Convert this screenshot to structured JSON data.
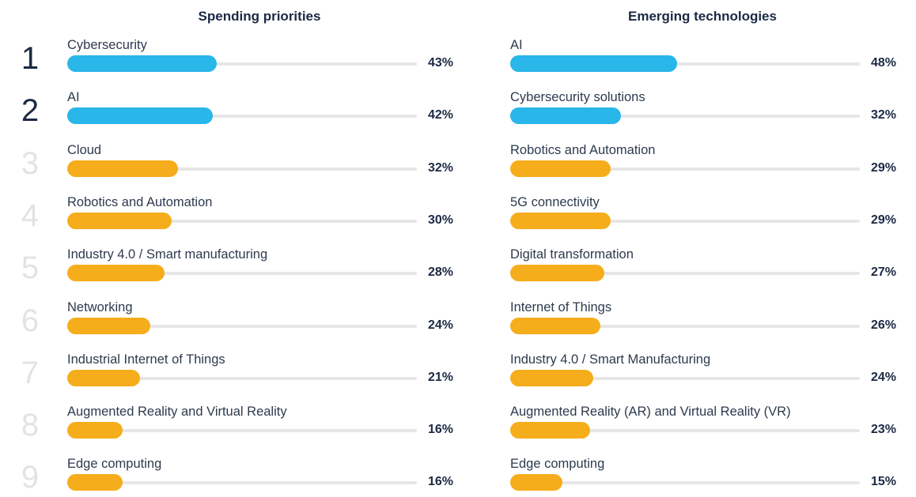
{
  "colors": {
    "top": "#29b6e8",
    "rest": "#f6ad1b",
    "rank_top": "#1b2a44",
    "rank_rest": "#e3e3e3"
  },
  "chart_data": [
    {
      "type": "bar",
      "orientation": "horizontal",
      "title": "Spending priorities",
      "ranks": [
        "1",
        "2",
        "3",
        "4",
        "5",
        "6",
        "7",
        "8",
        "9"
      ],
      "categories": [
        "Cybersecurity",
        "AI",
        "Cloud",
        "Robotics and Automation",
        "Industry 4.0 / Smart manufacturing",
        "Networking",
        "Industrial Internet of Things",
        "Augmented Reality and Virtual Reality",
        "Edge computing"
      ],
      "values": [
        43,
        42,
        32,
        30,
        28,
        24,
        21,
        16,
        16
      ],
      "labels": [
        "43%",
        "42%",
        "32%",
        "30%",
        "28%",
        "24%",
        "21%",
        "16%",
        "16%"
      ],
      "highlight_top": 2,
      "xlim": [
        0,
        100
      ]
    },
    {
      "type": "bar",
      "orientation": "horizontal",
      "title": "Emerging technologies",
      "categories": [
        "AI",
        "Cybersecurity solutions",
        "Robotics and Automation",
        "5G connectivity",
        "Digital transformation",
        "Internet of Things",
        "Industry 4.0 / Smart Manufacturing",
        "Augmented Reality (AR) and Virtual Reality (VR)",
        "Edge computing"
      ],
      "values": [
        48,
        32,
        29,
        29,
        27,
        26,
        24,
        23,
        15
      ],
      "labels": [
        "48%",
        "32%",
        "29%",
        "29%",
        "27%",
        "26%",
        "24%",
        "23%",
        "15%"
      ],
      "highlight_top": 2,
      "xlim": [
        0,
        100
      ]
    }
  ]
}
